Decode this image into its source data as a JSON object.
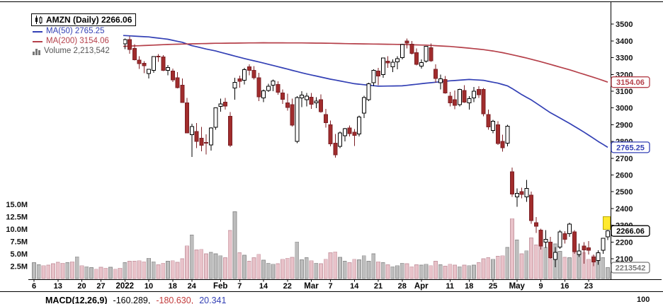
{
  "legend": {
    "symbol_line": "AMZN (Daily) 2266.06",
    "ma50": "MA(50) 2765.25",
    "ma200": "MA(200) 3154.06",
    "volume": "Volume 2,213,542"
  },
  "indicator": {
    "label": "MACD(12,26,9)",
    "value1": "-160.289,",
    "value2": "-180.630,",
    "value3": "20.341",
    "axis_label": "100",
    "value_colors": [
      "#000000",
      "#c23b3b",
      "#3340b5"
    ]
  },
  "chart_data": {
    "type": "candlestick",
    "symbol": "AMZN",
    "timeframe": "Daily",
    "last_price": 2266.06,
    "last_volume": "2,213,542",
    "price_axis": {
      "side": "right",
      "ticks": [
        3500,
        3400,
        3300,
        3200,
        3100,
        3000,
        2900,
        2800,
        2700,
        2600,
        2500,
        2400,
        2300,
        2200,
        2100
      ]
    },
    "volume_axis": {
      "side": "left",
      "tick_values_m": [
        15,
        12.5,
        10,
        7.5,
        5,
        2.5
      ],
      "tick_labels": [
        "15.0M",
        "12.5M",
        "10.0M",
        "7.5M",
        "5.0M",
        "2.5M"
      ]
    },
    "x_axis": {
      "labels": [
        {
          "i": 0,
          "label": "6"
        },
        {
          "i": 5,
          "label": "13"
        },
        {
          "i": 10,
          "label": "20"
        },
        {
          "i": 14,
          "label": "27"
        },
        {
          "i": 19,
          "label": "2022",
          "bold": true
        },
        {
          "i": 24,
          "label": "10"
        },
        {
          "i": 29,
          "label": "18"
        },
        {
          "i": 33,
          "label": "24"
        },
        {
          "i": 39,
          "label": "Feb",
          "bold": true
        },
        {
          "i": 43,
          "label": "7"
        },
        {
          "i": 48,
          "label": "14"
        },
        {
          "i": 53,
          "label": "22"
        },
        {
          "i": 58,
          "label": "Mar",
          "bold": true
        },
        {
          "i": 62,
          "label": "7"
        },
        {
          "i": 67,
          "label": "14"
        },
        {
          "i": 72,
          "label": "21"
        },
        {
          "i": 77,
          "label": "28"
        },
        {
          "i": 81,
          "label": "Apr",
          "bold": true
        },
        {
          "i": 87,
          "label": "11"
        },
        {
          "i": 91,
          "label": "18"
        },
        {
          "i": 96,
          "label": "25"
        },
        {
          "i": 101,
          "label": "May",
          "bold": true
        },
        {
          "i": 106,
          "label": "9"
        },
        {
          "i": 111,
          "label": "16"
        },
        {
          "i": 116,
          "label": "23"
        }
      ]
    },
    "colors": {
      "up_fill": "#ffffff",
      "up_stroke": "#000000",
      "down_fill": "#a12c2c",
      "down_stroke": "#7c2026",
      "ma50": "#3340b5",
      "ma200": "#b5404a",
      "vol_up_fill": "#bdbdbd",
      "vol_up_stroke": "#8f8f8f",
      "vol_down_fill": "#e8c2c9",
      "vol_down_stroke": "#c79aa4",
      "last": "#000000",
      "volume_box": "#7a7a7a",
      "vol_text": "#555555",
      "flag": "#ffe92e"
    },
    "ohlc": [
      [
        "12/6",
        3480,
        3525,
        3460,
        3523,
        3.2
      ],
      [
        "12/7",
        3530,
        3560,
        3520,
        3555,
        2.8
      ],
      [
        "12/8",
        3550,
        3560,
        3510,
        3525,
        2.6
      ],
      [
        "12/9",
        3520,
        3530,
        3460,
        3466,
        2.7
      ],
      [
        "12/10",
        3470,
        3490,
        3435,
        3444,
        3.0
      ],
      [
        "12/13",
        3440,
        3465,
        3370,
        3391,
        3.3
      ],
      [
        "12/14",
        3380,
        3420,
        3340,
        3378,
        3.1
      ],
      [
        "12/15",
        3370,
        3425,
        3345,
        3420,
        3.2
      ],
      [
        "12/16",
        3425,
        3430,
        3335,
        3377,
        3.4
      ],
      [
        "12/17",
        3360,
        3420,
        3340,
        3400,
        4.4
      ],
      [
        "12/20",
        3380,
        3395,
        3333,
        3365,
        2.6
      ],
      [
        "12/21",
        3380,
        3420,
        3360,
        3408,
        2.4
      ],
      [
        "12/22",
        3400,
        3425,
        3375,
        3420,
        2.2
      ],
      [
        "12/23",
        3425,
        3440,
        3398,
        3421,
        1.9
      ],
      [
        "12/27",
        3425,
        3445,
        3390,
        3393,
        2.3
      ],
      [
        "12/28",
        3395,
        3415,
        3360,
        3365,
        2.1
      ],
      [
        "12/29",
        3370,
        3415,
        3355,
        3413,
        2.3
      ],
      [
        "12/30",
        3415,
        3428,
        3370,
        3372,
        1.9
      ],
      [
        "12/31",
        3375,
        3385,
        3330,
        3334,
        2.1
      ],
      [
        "1/3",
        3382,
        3415,
        3352,
        3408,
        3.2
      ],
      [
        "1/4",
        3408,
        3428,
        3324,
        3350,
        3.5
      ],
      [
        "1/5",
        3355,
        3380,
        3283,
        3287,
        3.5
      ],
      [
        "1/6",
        3286,
        3308,
        3232,
        3265,
        3.6
      ],
      [
        "1/7",
        3266,
        3280,
        3208,
        3251,
        3.4
      ],
      [
        "1/10",
        3205,
        3233,
        3175,
        3230,
        4.1
      ],
      [
        "1/11",
        3225,
        3310,
        3210,
        3307,
        3.4
      ],
      [
        "1/12",
        3310,
        3322,
        3275,
        3304,
        2.8
      ],
      [
        "1/13",
        3305,
        3316,
        3221,
        3224,
        3.1
      ],
      [
        "1/14",
        3225,
        3257,
        3195,
        3242,
        3.5
      ],
      [
        "1/18",
        3220,
        3235,
        3155,
        3168,
        3.6
      ],
      [
        "1/19",
        3180,
        3214,
        3118,
        3121,
        3.3
      ],
      [
        "1/20",
        3135,
        3177,
        3031,
        3033,
        4.0
      ],
      [
        "1/21",
        3030,
        3060,
        2852,
        2852,
        6.6
      ],
      [
        "1/24",
        2840,
        2905,
        2707,
        2890,
        8.8
      ],
      [
        "1/25",
        2860,
        2910,
        2760,
        2800,
        5.8
      ],
      [
        "1/26",
        2820,
        2886,
        2742,
        2777,
        5.9
      ],
      [
        "1/27",
        2795,
        2842,
        2722,
        2793,
        5.0
      ],
      [
        "1/28",
        2780,
        2885,
        2746,
        2880,
        5.3
      ],
      [
        "1/31",
        2885,
        3002,
        2870,
        3000,
        5.0
      ],
      [
        "2/1",
        3010,
        3055,
        2978,
        3024,
        4.6
      ],
      [
        "2/2",
        3035,
        3060,
        2990,
        3012,
        4.2
      ],
      [
        "2/3",
        2950,
        2975,
        2766,
        2777,
        9.7
      ],
      [
        "2/4",
        3120,
        3180,
        3049,
        3153,
        13.5
      ],
      [
        "2/7",
        3173,
        3193,
        3122,
        3160,
        5.2
      ],
      [
        "2/8",
        3165,
        3240,
        3140,
        3228,
        4.7
      ],
      [
        "2/9",
        3245,
        3260,
        3196,
        3224,
        3.5
      ],
      [
        "2/10",
        3225,
        3250,
        3170,
        3180,
        4.2
      ],
      [
        "2/11",
        3180,
        3210,
        3040,
        3066,
        4.9
      ],
      [
        "2/14",
        3060,
        3110,
        3035,
        3103,
        3.7
      ],
      [
        "2/15",
        3105,
        3145,
        3095,
        3130,
        3.1
      ],
      [
        "2/16",
        3135,
        3170,
        3100,
        3162,
        2.9
      ],
      [
        "2/17",
        3140,
        3160,
        3080,
        3093,
        3.0
      ],
      [
        "2/18",
        3090,
        3110,
        3025,
        3052,
        3.9
      ],
      [
        "2/22",
        3030,
        3085,
        2985,
        3004,
        4.1
      ],
      [
        "2/23",
        3020,
        3056,
        2890,
        2897,
        4.3
      ],
      [
        "2/24",
        2800,
        3070,
        2790,
        3062,
        7.4
      ],
      [
        "2/25",
        3060,
        3100,
        3006,
        3076,
        3.8
      ],
      [
        "2/28",
        3050,
        3090,
        3010,
        3071,
        4.2
      ],
      [
        "3/1",
        3065,
        3090,
        2994,
        3023,
        3.6
      ],
      [
        "3/2",
        3030,
        3065,
        2998,
        3041,
        3.1
      ],
      [
        "3/3",
        3050,
        3082,
        2972,
        2978,
        3.0
      ],
      [
        "3/4",
        2960,
        2995,
        2883,
        2913,
        3.9
      ],
      [
        "3/7",
        2900,
        2925,
        2770,
        2786,
        5.2
      ],
      [
        "3/8",
        2790,
        2845,
        2703,
        2720,
        5.4
      ],
      [
        "3/9",
        2770,
        2860,
        2760,
        2852,
        4.3
      ],
      [
        "3/10",
        2835,
        2880,
        2801,
        2877,
        3.5
      ],
      [
        "3/11",
        2880,
        2895,
        2830,
        2846,
        3.2
      ],
      [
        "3/14",
        2855,
        2875,
        2773,
        2837,
        3.9
      ],
      [
        "3/15",
        2845,
        2955,
        2830,
        2947,
        3.8
      ],
      [
        "3/16",
        2970,
        3072,
        2940,
        3062,
        4.6
      ],
      [
        "3/17",
        3050,
        3150,
        3040,
        3145,
        3.5
      ],
      [
        "3/18",
        3150,
        3230,
        3130,
        3225,
        5.0
      ],
      [
        "3/21",
        3220,
        3240,
        3135,
        3190,
        3.4
      ],
      [
        "3/22",
        3200,
        3300,
        3180,
        3298,
        3.2
      ],
      [
        "3/23",
        3280,
        3310,
        3240,
        3268,
        2.8
      ],
      [
        "3/24",
        3245,
        3290,
        3215,
        3273,
        2.4
      ],
      [
        "3/25",
        3275,
        3310,
        3230,
        3295,
        2.6
      ],
      [
        "3/28",
        3300,
        3382,
        3290,
        3379,
        3.1
      ],
      [
        "3/29",
        3400,
        3415,
        3355,
        3386,
        3.0
      ],
      [
        "3/30",
        3380,
        3400,
        3320,
        3326,
        2.4
      ],
      [
        "3/31",
        3330,
        3355,
        3255,
        3260,
        2.8
      ],
      [
        "4/1",
        3250,
        3290,
        3235,
        3271,
        2.7
      ],
      [
        "4/4",
        3280,
        3370,
        3270,
        3367,
        2.9
      ],
      [
        "4/5",
        3360,
        3385,
        3275,
        3281,
        2.6
      ],
      [
        "4/6",
        3230,
        3260,
        3151,
        3175,
        3.5
      ],
      [
        "4/7",
        3150,
        3200,
        3110,
        3173,
        2.8
      ],
      [
        "4/8",
        3170,
        3190,
        3085,
        3090,
        2.5
      ],
      [
        "4/11",
        3070,
        3095,
        3010,
        3030,
        2.9
      ],
      [
        "4/12",
        3050,
        3105,
        2992,
        3015,
        2.7
      ],
      [
        "4/13",
        3020,
        3115,
        3010,
        3111,
        2.4
      ],
      [
        "4/14",
        3105,
        3135,
        3030,
        3034,
        2.7
      ],
      [
        "4/18",
        3030,
        3070,
        2990,
        3056,
        2.6
      ],
      [
        "4/19",
        3060,
        3125,
        3035,
        3100,
        2.7
      ],
      [
        "4/20",
        3110,
        3130,
        3060,
        3080,
        3.2
      ],
      [
        "4/21",
        3110,
        3120,
        2950,
        2965,
        4.0
      ],
      [
        "4/22",
        2960,
        2990,
        2870,
        2887,
        4.2
      ],
      [
        "4/25",
        2865,
        2930,
        2850,
        2921,
        3.9
      ],
      [
        "4/26",
        2900,
        2920,
        2780,
        2788,
        4.5
      ],
      [
        "4/27",
        2800,
        2840,
        2740,
        2763,
        4.6
      ],
      [
        "4/28",
        2790,
        2900,
        2770,
        2892,
        6.3
      ],
      [
        "4/29",
        2620,
        2645,
        2470,
        2486,
        12.1
      ],
      [
        "5/2",
        2470,
        2520,
        2410,
        2490,
        7.8
      ],
      [
        "5/3",
        2500,
        2525,
        2460,
        2485,
        5.0
      ],
      [
        "5/4",
        2470,
        2570,
        2440,
        2519,
        5.6
      ],
      [
        "5/5",
        2480,
        2500,
        2310,
        2328,
        8.2
      ],
      [
        "5/6",
        2315,
        2350,
        2255,
        2295,
        6.8
      ],
      [
        "5/9",
        2270,
        2280,
        2155,
        2176,
        7.5
      ],
      [
        "5/10",
        2200,
        2270,
        2165,
        2216,
        6.3
      ],
      [
        "5/11",
        2200,
        2230,
        2100,
        2107,
        6.4
      ],
      [
        "5/12",
        2095,
        2170,
        2050,
        2139,
        7.0
      ],
      [
        "5/13",
        2170,
        2270,
        2160,
        2261,
        5.5
      ],
      [
        "5/16",
        2250,
        2265,
        2190,
        2216,
        4.3
      ],
      [
        "5/17",
        2250,
        2315,
        2230,
        2307,
        4.2
      ],
      [
        "5/18",
        2260,
        2270,
        2130,
        2142,
        5.6
      ],
      [
        "5/19",
        2125,
        2190,
        2110,
        2146,
        4.8
      ],
      [
        "5/20",
        2175,
        2200,
        2070,
        2152,
        5.2
      ],
      [
        "5/23",
        2165,
        2205,
        2125,
        2151,
        3.9
      ],
      [
        "5/24",
        2110,
        2125,
        2055,
        2082,
        4.6
      ],
      [
        "5/25",
        2090,
        2150,
        2065,
        2136,
        4.0
      ],
      [
        "5/26",
        2150,
        2225,
        2130,
        2222,
        4.2
      ],
      [
        "5/27",
        2230,
        2270,
        2212,
        2266.06,
        2.2
      ]
    ],
    "overlays": [
      {
        "name": "MA(50)",
        "last": 2765.25,
        "color_key": "ma50",
        "points": [
          [
            0,
            3446
          ],
          [
            10,
            3440
          ],
          [
            19,
            3432
          ],
          [
            24,
            3424
          ],
          [
            28,
            3410
          ],
          [
            31,
            3392
          ],
          [
            33,
            3372
          ],
          [
            36,
            3352
          ],
          [
            38,
            3340
          ],
          [
            43,
            3302
          ],
          [
            48,
            3268
          ],
          [
            53,
            3232
          ],
          [
            57,
            3203
          ],
          [
            62,
            3172
          ],
          [
            67,
            3145
          ],
          [
            72,
            3130
          ],
          [
            77,
            3132
          ],
          [
            82,
            3148
          ],
          [
            87,
            3162
          ],
          [
            91,
            3170
          ],
          [
            94,
            3165
          ],
          [
            97,
            3148
          ],
          [
            99,
            3132
          ],
          [
            100,
            3116
          ],
          [
            102,
            3080
          ],
          [
            104,
            3048
          ],
          [
            106,
            3010
          ],
          [
            108,
            2972
          ],
          [
            110,
            2940
          ],
          [
            112,
            2908
          ],
          [
            114,
            2874
          ],
          [
            116,
            2838
          ],
          [
            118,
            2800
          ],
          [
            120,
            2765.25
          ]
        ]
      },
      {
        "name": "MA(200)",
        "last": 3154.06,
        "color_key": "ma200",
        "points": [
          [
            0,
            3352
          ],
          [
            19,
            3368
          ],
          [
            29,
            3380
          ],
          [
            38,
            3386
          ],
          [
            48,
            3389
          ],
          [
            57,
            3388
          ],
          [
            62,
            3386
          ],
          [
            67,
            3383
          ],
          [
            72,
            3381
          ],
          [
            77,
            3379
          ],
          [
            82,
            3375
          ],
          [
            87,
            3367
          ],
          [
            91,
            3357
          ],
          [
            94,
            3348
          ],
          [
            96,
            3340
          ],
          [
            98,
            3330
          ],
          [
            100,
            3318
          ],
          [
            103,
            3298
          ],
          [
            106,
            3276
          ],
          [
            109,
            3252
          ],
          [
            112,
            3228
          ],
          [
            114,
            3210
          ],
          [
            116,
            3192
          ],
          [
            118,
            3174
          ],
          [
            120,
            3154.06
          ]
        ]
      }
    ],
    "callouts": [
      {
        "label": "3154.06",
        "value": 3154.06,
        "axis": "price",
        "color_key": "ma200"
      },
      {
        "label": "2765.25",
        "value": 2765.25,
        "axis": "price",
        "color_key": "ma50"
      },
      {
        "label": "2266.06",
        "value": 2266.06,
        "axis": "price",
        "color_key": "last",
        "bold": true
      },
      {
        "label": "2213542",
        "value": 2.21,
        "axis": "volume",
        "color_key": "volume_box"
      }
    ]
  }
}
